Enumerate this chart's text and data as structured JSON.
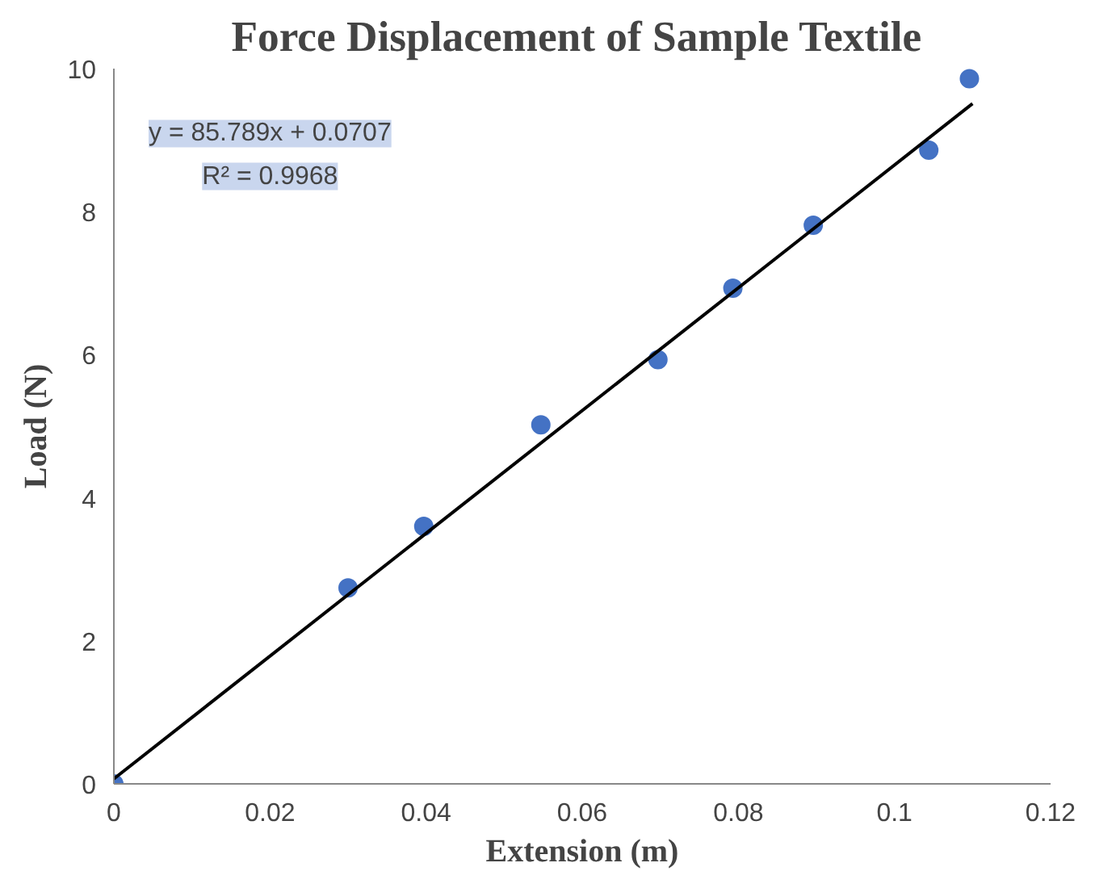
{
  "chart_data": {
    "type": "scatter",
    "title": "Force Displacement  of Sample Textile",
    "xlabel": "Extension (m)",
    "ylabel": "Load (N)",
    "series": [
      {
        "color": "#4472c4",
        "marker": "circle",
        "x": [
          0,
          0.03,
          0.0397,
          0.0547,
          0.0697,
          0.0793,
          0.0896,
          0.1044,
          0.1096
        ],
        "values": [
          0,
          2.74,
          3.6,
          5.02,
          5.93,
          6.93,
          7.81,
          8.86,
          9.86
        ]
      },
      {
        "type": "line",
        "color": "#000000",
        "x": [
          0,
          0.11
        ],
        "values": [
          0.07,
          9.51
        ]
      }
    ],
    "annotations": [
      "y = 85.789x + 0.0707",
      "R² = 0.9968"
    ],
    "xlim": [
      0,
      0.12
    ],
    "ylim": [
      0,
      10
    ],
    "xticks": [
      0,
      0.02,
      0.04,
      0.06,
      0.08,
      0.1,
      0.12
    ],
    "yticks": [
      0,
      2,
      4,
      6,
      8,
      10
    ],
    "grid": false
  }
}
